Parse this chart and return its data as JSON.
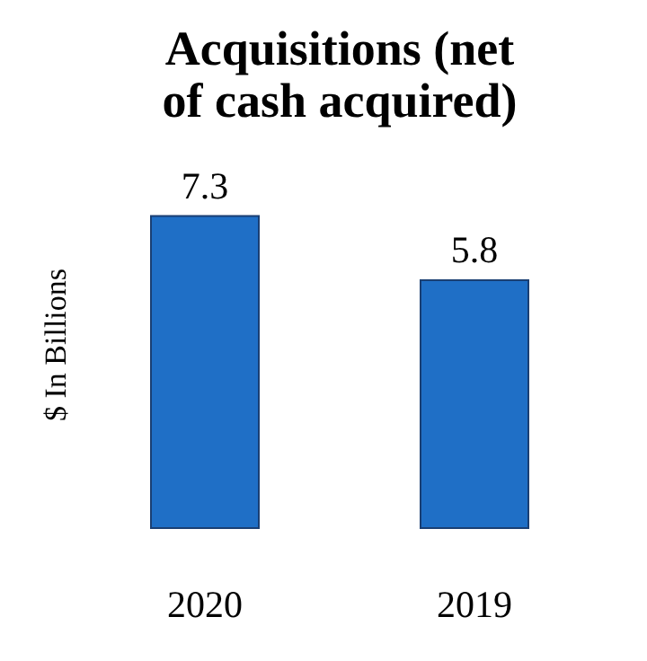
{
  "chart_data": {
    "type": "bar",
    "title": "Acquisitions (net of cash acquired)",
    "ylabel": "$ In Billions",
    "categories": [
      "2020",
      "2019"
    ],
    "values": [
      7.3,
      5.8
    ],
    "color": "#1f6fc6",
    "data_labels": true
  }
}
